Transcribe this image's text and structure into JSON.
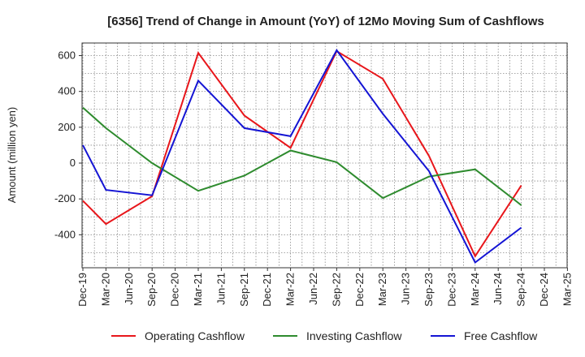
{
  "chart_data": {
    "type": "line",
    "title": "[6356]  Trend of Change in Amount (YoY) of 12Mo Moving Sum of Cashflows",
    "xlabel": "",
    "ylabel": "Amount (million yen)",
    "categories": [
      "Dec-19",
      "Mar-20",
      "Jun-20",
      "Sep-20",
      "Dec-20",
      "Mar-21",
      "Jun-21",
      "Sep-21",
      "Dec-21",
      "Mar-22",
      "Jun-22",
      "Sep-22",
      "Dec-22",
      "Mar-23",
      "Jun-23",
      "Sep-23",
      "Dec-23",
      "Mar-24",
      "Jun-24",
      "Sep-24",
      "Dec-24",
      "Mar-25"
    ],
    "yticks": [
      -400,
      -200,
      0,
      200,
      400,
      600
    ],
    "ylim": [
      -590,
      670
    ],
    "grid": true,
    "legend_position": "bottom",
    "series": [
      {
        "name": "Operating Cashflow",
        "color": "#e8161b",
        "values": [
          -210,
          -340,
          null,
          -185,
          null,
          615,
          null,
          265,
          null,
          85,
          null,
          625,
          null,
          470,
          null,
          40,
          null,
          -520,
          null,
          -125,
          null,
          null
        ]
      },
      {
        "name": "Investing Cashflow",
        "color": "#2e8b2e",
        "values": [
          310,
          195,
          null,
          0,
          null,
          -155,
          null,
          -70,
          null,
          70,
          null,
          5,
          null,
          -195,
          null,
          -75,
          null,
          -35,
          null,
          -235,
          null,
          null
        ]
      },
      {
        "name": "Free Cashflow",
        "color": "#1414d4",
        "values": [
          100,
          -150,
          null,
          -180,
          null,
          460,
          null,
          195,
          null,
          150,
          null,
          630,
          null,
          275,
          null,
          -45,
          null,
          -555,
          null,
          -360,
          null,
          null
        ]
      }
    ]
  }
}
